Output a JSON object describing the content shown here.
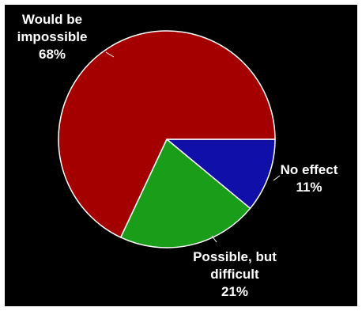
{
  "chart_data": {
    "type": "pie",
    "slices": [
      {
        "name": "No effect",
        "label_lines": [
          "No effect"
        ],
        "percent_label": "11%",
        "value": 11,
        "color": "#1010a8"
      },
      {
        "name": "Possible, but difficult",
        "label_lines": [
          "Possible, but",
          "difficult"
        ],
        "percent_label": "21%",
        "value": 21,
        "color": "#1a9e1a"
      },
      {
        "name": "Would be impossible",
        "label_lines": [
          "Would be",
          "impossible"
        ],
        "percent_label": "68%",
        "value": 68,
        "color": "#a40000"
      }
    ],
    "start_angle_deg": 0,
    "direction": "clockwise",
    "border_color": "#ffffff",
    "background": "#000000"
  }
}
